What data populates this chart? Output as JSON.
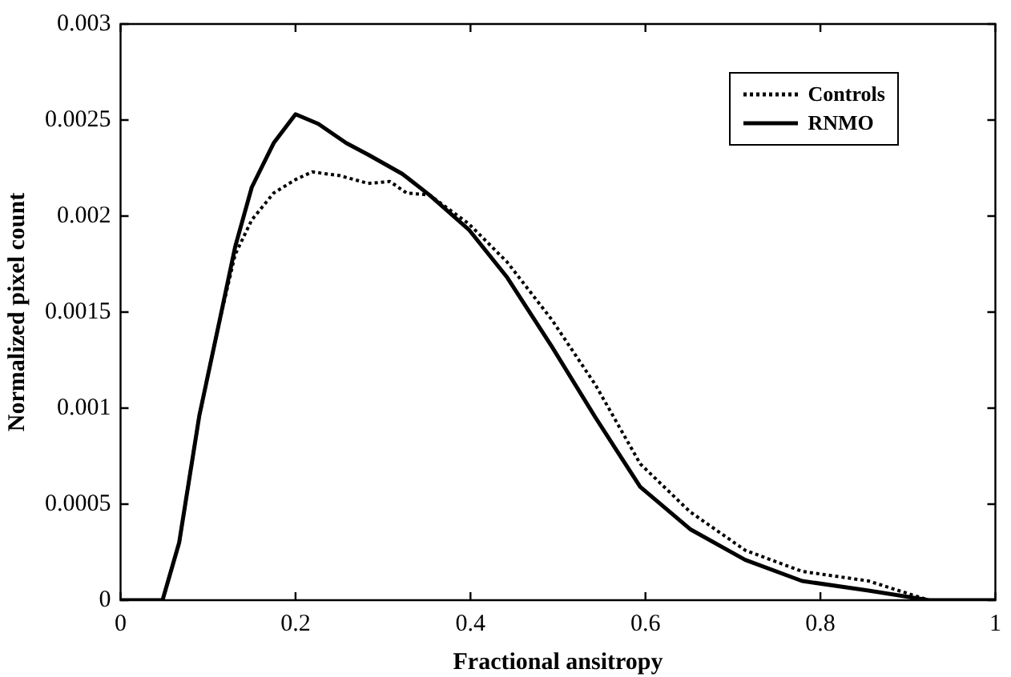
{
  "chart_data": {
    "type": "line",
    "xlabel": "Fractional ansitropy",
    "ylabel": "Normalized pixel count",
    "xlim": [
      0,
      1
    ],
    "xticks": [
      0,
      0.2,
      0.4,
      0.6,
      0.8,
      1
    ],
    "ylim": [
      0,
      0.003
    ],
    "yticks": [
      0,
      0.0005,
      0.001,
      0.0015,
      0.002,
      0.0025,
      0.003
    ],
    "grid": false,
    "legend": "top right",
    "marker": "none",
    "series": [
      {
        "name": "Controls",
        "color": "#000000",
        "line_style": "dotted",
        "x": [
          0,
          0.04,
          0.048,
          0.067,
          0.09,
          0.112,
          0.131,
          0.15,
          0.175,
          0.2,
          0.219,
          0.251,
          0.283,
          0.308,
          0.327,
          0.353,
          0.398,
          0.442,
          0.493,
          0.543,
          0.594,
          0.651,
          0.714,
          0.779,
          0.855,
          0.924,
          0.95,
          1
        ],
        "values": [
          0,
          0,
          0,
          0.0003,
          0.00096,
          0.00143,
          0.0018,
          0.00198,
          0.00212,
          0.00219,
          0.00223,
          0.00221,
          0.00217,
          0.00218,
          0.00212,
          0.00211,
          0.00196,
          0.00176,
          0.00146,
          0.00112,
          0.00071,
          0.00046,
          0.00026,
          0.00015,
          0.0001,
          0,
          0,
          0
        ]
      },
      {
        "name": "RNMO",
        "color": "#000000",
        "line_style": "solid",
        "x": [
          0,
          0.04,
          0.048,
          0.067,
          0.09,
          0.112,
          0.131,
          0.15,
          0.175,
          0.2,
          0.226,
          0.258,
          0.283,
          0.322,
          0.353,
          0.398,
          0.442,
          0.493,
          0.543,
          0.594,
          0.651,
          0.714,
          0.779,
          0.855,
          0.924,
          0.95,
          1
        ],
        "values": [
          0,
          0,
          0,
          0.0003,
          0.00096,
          0.00143,
          0.00184,
          0.00215,
          0.00238,
          0.00253,
          0.00248,
          0.00238,
          0.00232,
          0.00222,
          0.00211,
          0.00193,
          0.00168,
          0.00132,
          0.00095,
          0.00059,
          0.00037,
          0.00021,
          0.0001,
          5e-05,
          0,
          0,
          0
        ]
      }
    ]
  }
}
